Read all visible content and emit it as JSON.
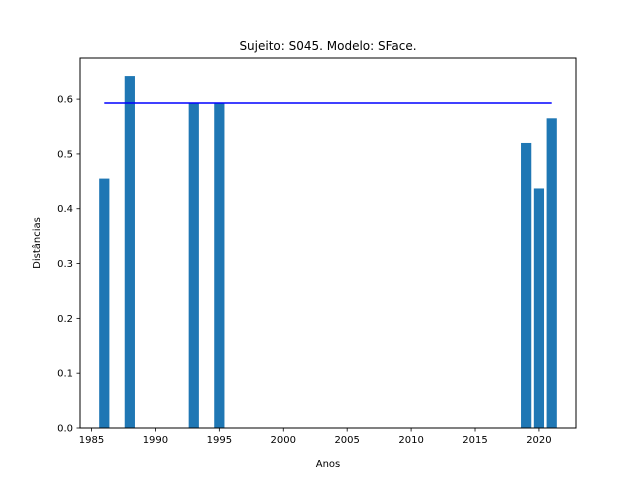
{
  "chart_data": {
    "type": "bar",
    "title": "Sujeito: S045. Modelo: SFace.",
    "xlabel": "Anos",
    "ylabel": "Distâncias",
    "x": [
      1986,
      1988,
      1993,
      1995,
      2019,
      2020,
      2021
    ],
    "values": [
      0.455,
      0.642,
      0.593,
      0.593,
      0.52,
      0.437,
      0.565
    ],
    "bar_color": "#1f77b4",
    "threshold": {
      "value": 0.593,
      "x_range": [
        1986,
        2021
      ],
      "color": "#0000ff"
    },
    "xlim": [
      1984.1,
      2022.9
    ],
    "ylim": [
      0,
      0.675
    ],
    "xticks": [
      1985,
      1990,
      1995,
      2000,
      2005,
      2010,
      2015,
      2020
    ],
    "yticks": [
      0.0,
      0.1,
      0.2,
      0.3,
      0.4,
      0.5,
      0.6
    ],
    "grid": false
  }
}
